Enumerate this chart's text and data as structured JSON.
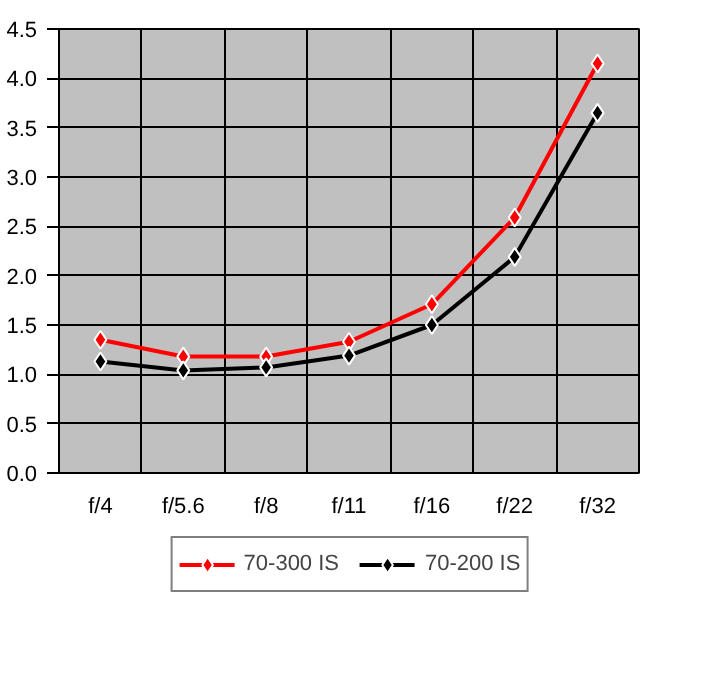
{
  "chart_data": {
    "type": "line",
    "categories": [
      "f/4",
      "f/5.6",
      "f/8",
      "f/11",
      "f/16",
      "f/22",
      "f/32"
    ],
    "series": [
      {
        "name": "70-300 IS",
        "color": "#ff0000",
        "values": [
          1.35,
          1.18,
          1.18,
          1.33,
          1.71,
          2.59,
          4.15
        ]
      },
      {
        "name": "70-200 IS",
        "color": "#000000",
        "values": [
          1.13,
          1.04,
          1.07,
          1.19,
          1.5,
          2.19,
          3.65
        ]
      }
    ],
    "ylim": [
      0,
      4.5
    ],
    "yticks": [
      {
        "value": 0,
        "label": "0.0"
      },
      {
        "value": 0.5,
        "label": "0.5"
      },
      {
        "value": 1,
        "label": "1.0"
      },
      {
        "value": 1.5,
        "label": "1.5"
      },
      {
        "value": 2,
        "label": "2.0"
      },
      {
        "value": 2.5,
        "label": "2.5"
      },
      {
        "value": 3,
        "label": "3.0"
      },
      {
        "value": 3.5,
        "label": "3.5"
      },
      {
        "value": 4,
        "label": "4.0"
      },
      {
        "value": 4.5,
        "label": "4.5"
      }
    ],
    "grid": true,
    "legend": "bottom",
    "marker": "diamond",
    "line_style": "solid"
  }
}
